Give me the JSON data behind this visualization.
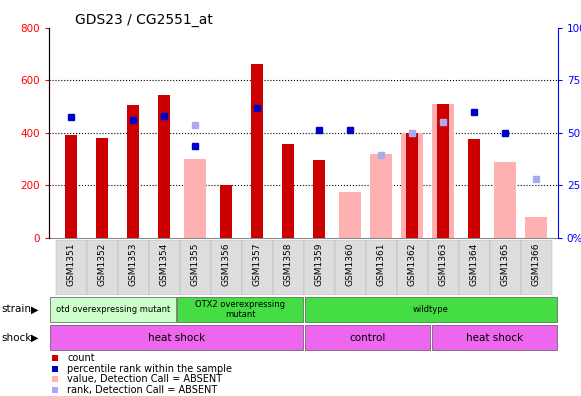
{
  "title": "GDS23 / CG2551_at",
  "samples": [
    "GSM1351",
    "GSM1352",
    "GSM1353",
    "GSM1354",
    "GSM1355",
    "GSM1356",
    "GSM1357",
    "GSM1358",
    "GSM1359",
    "GSM1360",
    "GSM1361",
    "GSM1362",
    "GSM1363",
    "GSM1364",
    "GSM1365",
    "GSM1366"
  ],
  "count_values": [
    390,
    380,
    505,
    545,
    null,
    200,
    660,
    355,
    295,
    null,
    null,
    400,
    510,
    375,
    null,
    null
  ],
  "percentile_values": [
    460,
    null,
    450,
    465,
    350,
    null,
    495,
    null,
    410,
    410,
    null,
    null,
    null,
    480,
    400,
    null
  ],
  "absent_value": [
    null,
    null,
    null,
    null,
    300,
    null,
    null,
    null,
    null,
    175,
    320,
    400,
    510,
    null,
    290,
    80
  ],
  "absent_rank": [
    null,
    null,
    null,
    null,
    430,
    null,
    null,
    null,
    null,
    null,
    315,
    400,
    440,
    null,
    null,
    225
  ],
  "count_color": "#cc0000",
  "percentile_color": "#0000cc",
  "absent_value_color": "#ffb0b0",
  "absent_rank_color": "#aaaaee",
  "ylim_left": [
    0,
    800
  ],
  "ylim_right": [
    0,
    100
  ],
  "yticks_left": [
    0,
    200,
    400,
    600,
    800
  ],
  "yticks_right": [
    0,
    25,
    50,
    75,
    100
  ],
  "strain_groups": [
    {
      "label": "otd overexpressing mutant",
      "start": 0,
      "end": 4,
      "color": "#ccffcc"
    },
    {
      "label": "OTX2 overexpressing\nmutant",
      "start": 4,
      "end": 8,
      "color": "#44dd44"
    },
    {
      "label": "wildtype",
      "start": 8,
      "end": 16,
      "color": "#44dd44"
    }
  ],
  "shock_groups": [
    {
      "label": "heat shock",
      "start": 0,
      "end": 8,
      "color": "#ee66ee"
    },
    {
      "label": "control",
      "start": 8,
      "end": 12,
      "color": "#ee66ee"
    },
    {
      "label": "heat shock",
      "start": 12,
      "end": 16,
      "color": "#ee66ee"
    }
  ],
  "bar_width": 0.4,
  "absent_bar_width": 0.7,
  "background_color": "#ffffff"
}
